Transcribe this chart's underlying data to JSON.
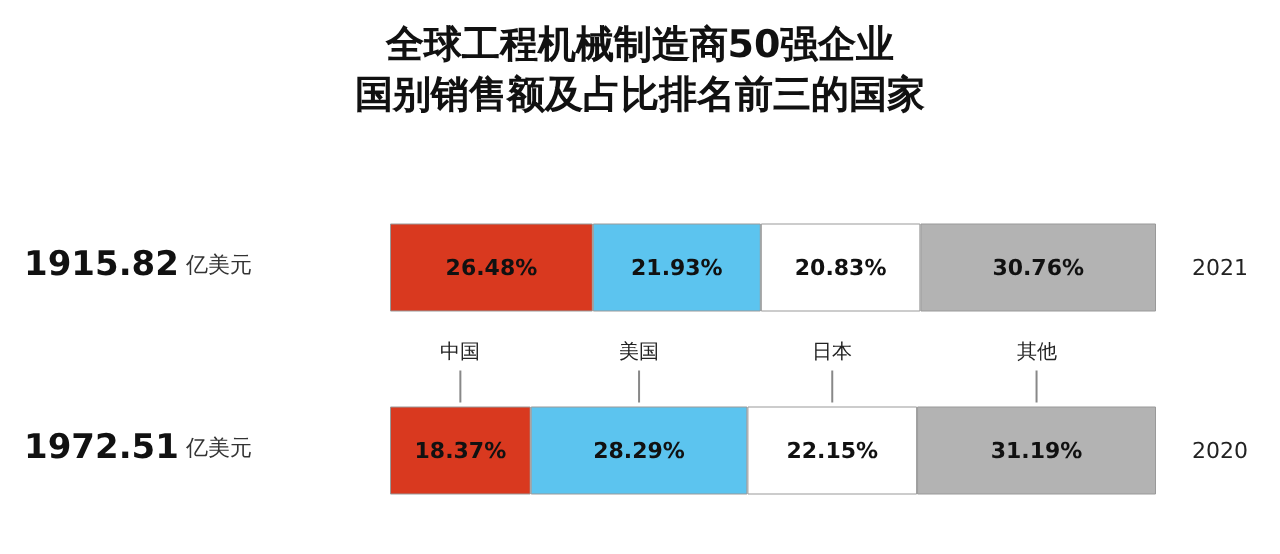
{
  "chart_data": {
    "type": "bar",
    "title": "全球工程机械制造商50强企业",
    "subtitle": "国别销售额及占比排名前三的国家",
    "orientation": "horizontal",
    "stacked": true,
    "categories": [
      "2021",
      "2020"
    ],
    "series": [
      {
        "name": "中国",
        "color": "#d9391f",
        "values": [
          26.48,
          18.37
        ],
        "value_labels": [
          "26.48%",
          "18.37%"
        ]
      },
      {
        "name": "美国",
        "color": "#5cc4ef",
        "values": [
          21.93,
          28.29
        ],
        "value_labels": [
          "21.93%",
          "28.29%"
        ]
      },
      {
        "name": "日本",
        "color": "#ffffff",
        "values": [
          20.83,
          22.15
        ],
        "value_labels": [
          "20.83%",
          "22.15%"
        ]
      },
      {
        "name": "其他",
        "color": "#b3b3b3",
        "values": [
          30.76,
          31.19
        ],
        "value_labels": [
          "30.76%",
          "31.19%"
        ]
      }
    ],
    "annotations": [
      "1915.82 亿美元",
      "1972.51 亿美元"
    ]
  }
}
